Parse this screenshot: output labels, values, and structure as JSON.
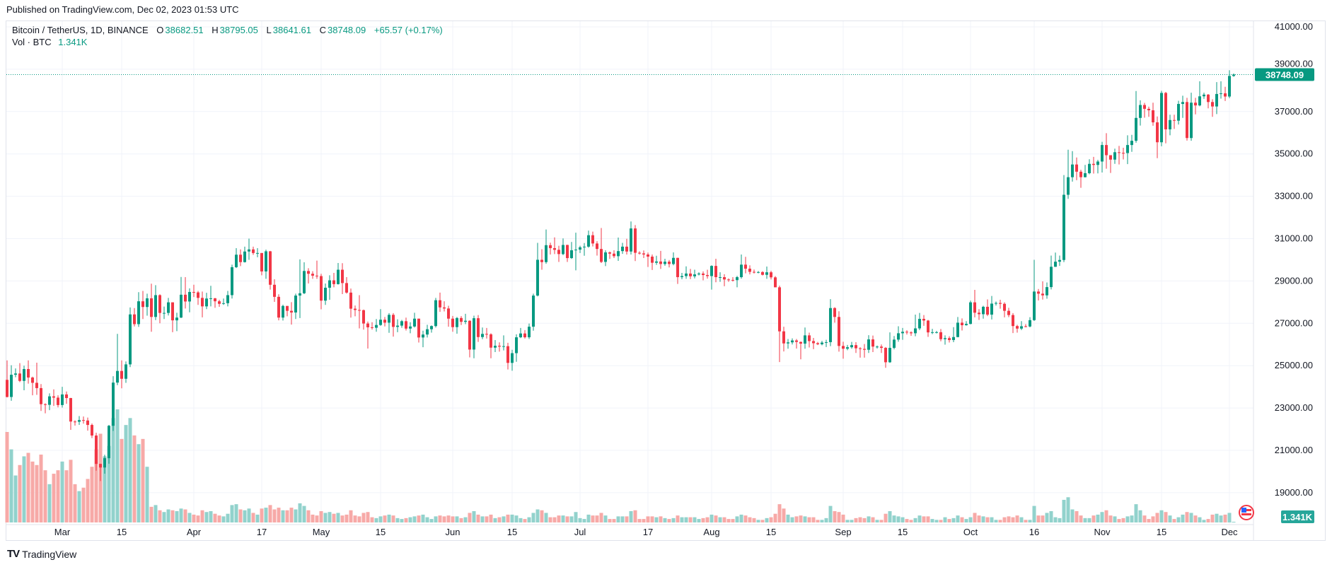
{
  "published": "Published on TradingView.com, Dec 02, 2023 01:53 UTC",
  "legend": {
    "symbol": "Bitcoin / TetherUS, 1D, BINANCE",
    "o_label": "O",
    "o": "38682.51",
    "h_label": "H",
    "h": "38795.05",
    "l_label": "L",
    "l": "38641.61",
    "c_label": "C",
    "c": "38748.09",
    "change": "+65.57 (+0.17%)",
    "vol_label": "Vol · BTC",
    "vol": "1.341K"
  },
  "last_price_label": "38748.09",
  "last_volume_label": "1.341K",
  "footer": {
    "brand": "TradingView",
    "logo_mark": "TV"
  },
  "colors": {
    "up": "#089981",
    "down": "#F23645",
    "vol_up": "#92D2CC",
    "vol_down": "#F7A9A7",
    "grid": "#F0F3FA",
    "last_label_bg": "#089981",
    "vol_label_bg": "#26A69A"
  },
  "chart_data": {
    "type": "candlestick",
    "title": "Bitcoin / TetherUS, 1D, BINANCE",
    "start_date": "2023-02-16",
    "interval": "1D",
    "first_open": 24330,
    "note_open": "open of each day equals previous day's close",
    "ylim": [
      18000,
      41500
    ],
    "y_ticks": [
      "41000.00",
      "39000.00",
      "37000.00",
      "35000.00",
      "33000.00",
      "31000.00",
      "29000.00",
      "27000.00",
      "25000.00",
      "23000.00",
      "21000.00",
      "19000.00"
    ],
    "x_ticks": [
      {
        "label": "Mar",
        "date": "2023-03-01"
      },
      {
        "label": "15",
        "date": "2023-03-15"
      },
      {
        "label": "Apr",
        "date": "2023-04-01"
      },
      {
        "label": "17",
        "date": "2023-04-17"
      },
      {
        "label": "May",
        "date": "2023-05-01"
      },
      {
        "label": "15",
        "date": "2023-05-15"
      },
      {
        "label": "Jun",
        "date": "2023-06-01"
      },
      {
        "label": "15",
        "date": "2023-06-15"
      },
      {
        "label": "Jul",
        "date": "2023-07-01"
      },
      {
        "label": "17",
        "date": "2023-07-17"
      },
      {
        "label": "Aug",
        "date": "2023-08-01"
      },
      {
        "label": "15",
        "date": "2023-08-15"
      },
      {
        "label": "Sep",
        "date": "2023-09-01"
      },
      {
        "label": "15",
        "date": "2023-09-15"
      },
      {
        "label": "Oct",
        "date": "2023-10-01"
      },
      {
        "label": "16",
        "date": "2023-10-16"
      },
      {
        "label": "Nov",
        "date": "2023-11-01"
      },
      {
        "label": "15",
        "date": "2023-11-15"
      },
      {
        "label": "Dec",
        "date": "2023-12-01"
      }
    ],
    "close": [
      23520,
      24570,
      24630,
      24280,
      24840,
      24440,
      24190,
      23940,
      23180,
      23150,
      23550,
      23490,
      23140,
      23640,
      23470,
      22360,
      22350,
      22430,
      22410,
      22200,
      21700,
      20360,
      20190,
      20630,
      22160,
      24200,
      24750,
      24380,
      25060,
      27420,
      26960,
      28040,
      27770,
      28180,
      27300,
      28330,
      27490,
      27490,
      27990,
      27140,
      27270,
      28350,
      28030,
      28480,
      28460,
      28200,
      27800,
      28170,
      28180,
      28040,
      27920,
      27950,
      28330,
      29650,
      30240,
      29890,
      30390,
      30490,
      30320,
      30320,
      29450,
      30400,
      28820,
      28250,
      27270,
      27820,
      27590,
      27510,
      28310,
      28420,
      29470,
      29340,
      29250,
      29230,
      28070,
      28680,
      29030,
      28850,
      29530,
      28900,
      28450,
      27690,
      27630,
      27620,
      26990,
      26810,
      26790,
      26920,
      27170,
      27030,
      27400,
      26830,
      26890,
      27100,
      26750,
      26850,
      27220,
      26330,
      26470,
      26720,
      26870,
      28090,
      27750,
      27700,
      27220,
      26820,
      27250,
      27070,
      27120,
      25760,
      27240,
      26350,
      26500,
      26480,
      25850,
      25940,
      25900,
      25920,
      25130,
      25590,
      26340,
      26520,
      26340,
      26840,
      28310,
      30000,
      29890,
      30690,
      30550,
      30470,
      30270,
      30700,
      30080,
      30450,
      30480,
      30590,
      30620,
      31160,
      30770,
      30510,
      29900,
      30350,
      30290,
      30170,
      30410,
      30620,
      30390,
      31480,
      30330,
      30300,
      30250,
      30150,
      29860,
      29920,
      29800,
      29910,
      29800,
      30090,
      29180,
      29230,
      29350,
      29220,
      29310,
      29350,
      29280,
      29230,
      29710,
      29180,
      29180,
      29070,
      29050,
      29040,
      29180,
      29770,
      29580,
      29430,
      29400,
      29420,
      29290,
      29410,
      29170,
      28700,
      26620,
      26050,
      26100,
      26190,
      26120,
      26040,
      26430,
      26160,
      26060,
      26010,
      26090,
      26110,
      27720,
      27300,
      25930,
      25800,
      25870,
      25970,
      25820,
      25790,
      25750,
      26240,
      25900,
      25900,
      25840,
      25160,
      25840,
      26230,
      26530,
      26600,
      26570,
      26530,
      26760,
      27210,
      27130,
      26570,
      26580,
      26580,
      26250,
      26300,
      26210,
      26350,
      27030,
      26910,
      26970,
      27990,
      27500,
      27430,
      27780,
      27410,
      27930,
      27960,
      27920,
      27590,
      27390,
      26870,
      26750,
      26860,
      26850,
      27150,
      28500,
      28400,
      28320,
      28710,
      29670,
      29910,
      29990,
      33070,
      33900,
      34500,
      34160,
      33900,
      34090,
      34530,
      34480,
      34640,
      35420,
      34940,
      34730,
      35080,
      35050,
      35040,
      35420,
      35620,
      36700,
      37310,
      37130,
      37060,
      36490,
      35550,
      37880,
      36160,
      36600,
      36570,
      37360,
      37450,
      35750,
      37420,
      37290,
      37720,
      37800,
      37450,
      37240,
      37830,
      37860,
      37710,
      38682.51,
      38748.09
    ],
    "high": [
      25250,
      25020,
      24870,
      25120,
      25000,
      25250,
      24480,
      25140,
      24130,
      23220,
      23690,
      23880,
      23600,
      24000,
      23780,
      23480,
      22420,
      22620,
      22600,
      22550,
      22270,
      21830,
      20370,
      20790,
      22200,
      24500,
      26500,
      25250,
      25200,
      27750,
      27720,
      28470,
      28530,
      28400,
      28870,
      28800,
      28370,
      27790,
      28200,
      27990,
      27500,
      29190,
      29180,
      28650,
      28820,
      28530,
      28500,
      28440,
      28770,
      28200,
      28110,
      28170,
      28530,
      29770,
      30550,
      30490,
      30620,
      31000,
      30620,
      30550,
      30320,
      30480,
      30420,
      29080,
      28370,
      27880,
      27820,
      28000,
      28400,
      30020,
      29880,
      29600,
      29460,
      29960,
      29340,
      28880,
      29270,
      29380,
      29850,
      29840,
      29180,
      28640,
      27840,
      28330,
      27650,
      27080,
      27050,
      27200,
      27670,
      27300,
      27480,
      27480,
      27190,
      27160,
      27270,
      27050,
      27500,
      27220,
      26650,
      26930,
      26900,
      28200,
      28450,
      28040,
      27830,
      27350,
      27300,
      27340,
      27450,
      27140,
      27360,
      27390,
      26800,
      26780,
      26530,
      26210,
      26100,
      26430,
      26080,
      25750,
      26480,
      26780,
      26680,
      26990,
      28400,
      30800,
      30500,
      31430,
      30810,
      31060,
      30660,
      31010,
      30710,
      30840,
      31280,
      30660,
      30790,
      31380,
      31330,
      30880,
      31500,
      30450,
      30390,
      30450,
      31050,
      30800,
      30990,
      31810,
      31640,
      30400,
      30440,
      30340,
      30250,
      30190,
      30420,
      30050,
      29990,
      30350,
      30100,
      29380,
      29690,
      29570,
      29530,
      29410,
      29450,
      29530,
      29740,
      30050,
      29410,
      29320,
      29120,
      29180,
      29240,
      30250,
      30140,
      29740,
      29540,
      29470,
      29460,
      29680,
      29480,
      29230,
      28780,
      26840,
      26260,
      26290,
      26260,
      26140,
      26800,
      26560,
      26310,
      26120,
      26170,
      26220,
      28140,
      27760,
      27570,
      26130,
      25980,
      26120,
      26110,
      25870,
      26020,
      26440,
      26420,
      25950,
      26000,
      25880,
      26570,
      26400,
      26860,
      26780,
      26670,
      26620,
      27410,
      27490,
      27390,
      27160,
      26740,
      26640,
      26730,
      26430,
      26390,
      26820,
      27300,
      27230,
      27100,
      28070,
      28580,
      27670,
      27830,
      28130,
      28290,
      28030,
      28110,
      27990,
      27730,
      27480,
      26930,
      27100,
      26960,
      27290,
      30000,
      28620,
      28980,
      28930,
      30200,
      30340,
      30200,
      34000,
      35200,
      35130,
      34830,
      34250,
      34480,
      34750,
      34860,
      34720,
      35570,
      35980,
      34940,
      35250,
      35380,
      35290,
      35880,
      35900,
      37970,
      37530,
      37410,
      37230,
      37420,
      36770,
      37980,
      37930,
      36850,
      36850,
      37510,
      37750,
      37650,
      37890,
      37650,
      38430,
      37890,
      37830,
      37580,
      38390,
      38430,
      38170,
      38950,
      38795.05
    ],
    "low": [
      23500,
      23340,
      24450,
      24220,
      23840,
      24150,
      23600,
      23620,
      22860,
      22750,
      22900,
      23100,
      23030,
      23020,
      23200,
      21970,
      22170,
      22200,
      22260,
      21930,
      21580,
      20040,
      19550,
      19900,
      20370,
      21920,
      24080,
      23930,
      24190,
      24930,
      26850,
      26830,
      27200,
      27360,
      26600,
      27150,
      27000,
      27200,
      27370,
      26580,
      26630,
      27250,
      27700,
      27520,
      28240,
      27870,
      27280,
      27670,
      27800,
      27730,
      27780,
      27870,
      27800,
      28170,
      29610,
      29700,
      29870,
      30000,
      30230,
      30120,
      29270,
      29100,
      28590,
      28010,
      27140,
      27130,
      27330,
      26940,
      27200,
      27250,
      28380,
      28880,
      29100,
      29100,
      27660,
      27870,
      28110,
      28700,
      28830,
      28380,
      28400,
      27270,
      27330,
      26760,
      26700,
      25810,
      26700,
      26600,
      26880,
      26850,
      26550,
      26370,
      26580,
      26790,
      26660,
      26530,
      26800,
      26090,
      25870,
      26330,
      26560,
      26800,
      27540,
      27560,
      26840,
      26600,
      26510,
      26920,
      26960,
      25390,
      25350,
      26120,
      26250,
      26280,
      25350,
      25640,
      25660,
      25720,
      24820,
      24760,
      25180,
      26300,
      26280,
      26260,
      26650,
      28270,
      29530,
      29810,
      30250,
      30270,
      29900,
      30220,
      29900,
      30040,
      29500,
      30320,
      30190,
      30570,
      30630,
      30200,
      29850,
      29700,
      30040,
      30080,
      29950,
      30280,
      30250,
      30250,
      29940,
      30250,
      30080,
      29660,
      29520,
      29760,
      29570,
      29720,
      29640,
      29740,
      28860,
      29080,
      29100,
      29090,
      29120,
      29260,
      29030,
      29110,
      28590,
      28940,
      28960,
      28750,
      28960,
      28970,
      28700,
      29110,
      29360,
      29310,
      29350,
      29360,
      29260,
      29100,
      29070,
      28700,
      25170,
      25670,
      25800,
      26000,
      25810,
      25300,
      25800,
      25860,
      25780,
      25970,
      25960,
      25880,
      25920,
      27030,
      25660,
      25330,
      25730,
      25800,
      25600,
      25380,
      25380,
      25600,
      25640,
      25810,
      25600,
      24900,
      25130,
      25770,
      26130,
      26220,
      26470,
      26410,
      26390,
      26680,
      26880,
      26360,
      26490,
      26520,
      26150,
      25990,
      26090,
      26110,
      26340,
      26660,
      26890,
      26950,
      27280,
      27160,
      27220,
      27340,
      27180,
      27840,
      27690,
      27280,
      27290,
      26540,
      26560,
      26680,
      26810,
      26810,
      27110,
      28080,
      28120,
      28160,
      28600,
      29660,
      29710,
      29890,
      32880,
      33690,
      33760,
      33400,
      33890,
      34040,
      34070,
      34080,
      34120,
      34300,
      34100,
      34530,
      34500,
      34740,
      34520,
      35100,
      35530,
      36340,
      36710,
      36750,
      36330,
      34800,
      35360,
      35500,
      35880,
      36180,
      36390,
      36700,
      35630,
      35620,
      36870,
      37250,
      37600,
      37150,
      36750,
      36880,
      37610,
      37500,
      37630,
      38641.61
    ],
    "volume_k": [
      520,
      420,
      270,
      330,
      380,
      400,
      350,
      330,
      390,
      300,
      220,
      280,
      300,
      350,
      300,
      360,
      220,
      180,
      200,
      250,
      320,
      420,
      510,
      380,
      440,
      600,
      650,
      480,
      560,
      600,
      500,
      450,
      480,
      320,
      90,
      100,
      70,
      60,
      75,
      70,
      65,
      80,
      75,
      55,
      45,
      40,
      70,
      60,
      65,
      50,
      40,
      35,
      50,
      100,
      105,
      75,
      70,
      80,
      55,
      45,
      80,
      85,
      100,
      75,
      85,
      70,
      70,
      85,
      75,
      110,
      95,
      70,
      45,
      40,
      65,
      55,
      60,
      50,
      55,
      40,
      45,
      70,
      40,
      35,
      55,
      60,
      30,
      25,
      35,
      40,
      45,
      40,
      25,
      20,
      25,
      30,
      35,
      40,
      45,
      30,
      20,
      35,
      40,
      35,
      40,
      35,
      35,
      25,
      30,
      55,
      65,
      45,
      35,
      35,
      45,
      25,
      30,
      35,
      45,
      45,
      40,
      25,
      20,
      30,
      55,
      75,
      70,
      55,
      30,
      30,
      40,
      40,
      35,
      35,
      60,
      25,
      20,
      45,
      40,
      40,
      55,
      40,
      20,
      20,
      35,
      35,
      35,
      65,
      70,
      20,
      20,
      35,
      35,
      30,
      35,
      25,
      20,
      25,
      40,
      30,
      30,
      30,
      30,
      20,
      25,
      30,
      45,
      40,
      30,
      30,
      20,
      20,
      35,
      45,
      40,
      30,
      25,
      15,
      15,
      25,
      30,
      50,
      105,
      80,
      45,
      30,
      35,
      40,
      35,
      30,
      30,
      15,
      15,
      25,
      95,
      65,
      60,
      45,
      15,
      15,
      25,
      30,
      25,
      35,
      30,
      15,
      15,
      50,
      65,
      40,
      35,
      30,
      20,
      15,
      25,
      40,
      35,
      35,
      20,
      15,
      15,
      30,
      20,
      25,
      40,
      30,
      20,
      30,
      55,
      40,
      35,
      30,
      30,
      15,
      15,
      30,
      35,
      30,
      40,
      30,
      15,
      15,
      95,
      40,
      40,
      55,
      65,
      30,
      25,
      130,
      145,
      75,
      65,
      40,
      25,
      25,
      40,
      45,
      60,
      70,
      40,
      35,
      20,
      25,
      35,
      40,
      105,
      70,
      40,
      20,
      35,
      55,
      70,
      60,
      40,
      20,
      30,
      45,
      60,
      55,
      40,
      30,
      15,
      20,
      45,
      50,
      40,
      45,
      55,
      1.341
    ],
    "last_price": 38748.09
  }
}
